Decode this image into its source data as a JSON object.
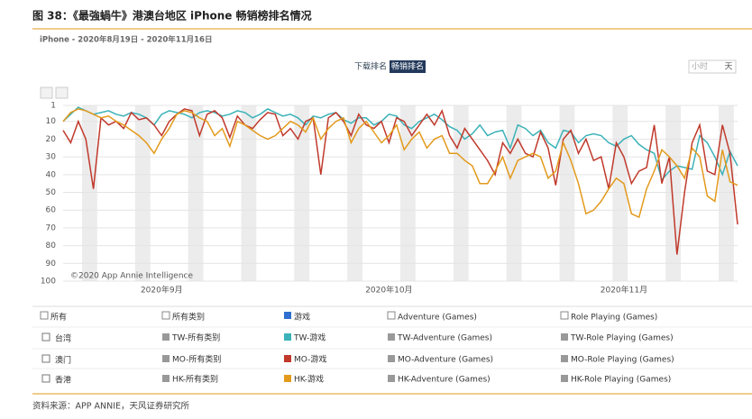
{
  "figure_title": "图 38：《最強蝸牛》港澳台地区 iPhone 畅销榜排名情况",
  "source": "资料来源：APP ANNIE，天风证券研究所",
  "controls": {
    "tabs": [
      "下载排名",
      "畅销排名"
    ],
    "interval": [
      "小时",
      "天"
    ]
  },
  "chart_data": {
    "type": "line",
    "subtitle": "iPhone - 2020年8月19日 - 2020年11月16日",
    "annotation": "©2020 App Annie Intelligence",
    "categories": [
      null,
      null,
      null,
      null,
      null,
      null,
      null,
      null,
      null,
      null,
      null,
      null,
      null,
      "2020年9月",
      null,
      null,
      null,
      null,
      null,
      null,
      null,
      null,
      null,
      null,
      null,
      null,
      null,
      null,
      null,
      null,
      null,
      null,
      null,
      null,
      null,
      null,
      null,
      null,
      null,
      null,
      null,
      null,
      null,
      "2020年10月",
      null,
      null,
      null,
      null,
      null,
      null,
      null,
      null,
      null,
      null,
      null,
      null,
      null,
      null,
      null,
      null,
      null,
      null,
      null,
      null,
      null,
      null,
      null,
      null,
      null,
      null,
      null,
      null,
      null,
      null,
      "2020年11月",
      null,
      null,
      null,
      null,
      null,
      null,
      null,
      null,
      null,
      null,
      null,
      null,
      null,
      null,
      null
    ],
    "series": [
      {
        "name": "TW-游戏",
        "color": "#3bb2b8",
        "values": [
          10,
          6,
          2,
          4,
          6,
          5,
          4,
          6,
          7,
          5,
          6,
          8,
          12,
          6,
          4,
          5,
          6,
          8,
          5,
          4,
          5,
          7,
          6,
          4,
          5,
          8,
          6,
          3,
          5,
          7,
          6,
          8,
          12,
          7,
          8,
          6,
          5,
          9,
          11,
          8,
          8,
          12,
          10,
          6,
          7,
          12,
          14,
          10,
          8,
          6,
          9,
          13,
          15,
          20,
          17,
          12,
          18,
          16,
          15,
          25,
          12,
          14,
          18,
          15,
          22,
          25,
          15,
          16,
          22,
          18,
          17,
          18,
          22,
          24,
          20,
          18,
          23,
          26,
          28,
          43,
          38,
          35,
          36,
          37,
          18,
          22,
          30,
          40,
          27,
          35
        ]
      },
      {
        "name": "MO-游戏",
        "color": "#c0392b",
        "values": [
          15,
          22,
          10,
          20,
          48,
          8,
          12,
          10,
          14,
          5,
          9,
          8,
          12,
          18,
          10,
          6,
          3,
          4,
          18,
          6,
          4,
          8,
          19,
          7,
          12,
          14,
          9,
          5,
          6,
          18,
          14,
          20,
          10,
          8,
          40,
          8,
          5,
          10,
          18,
          6,
          12,
          14,
          10,
          22,
          8,
          10,
          18,
          12,
          6,
          12,
          4,
          18,
          25,
          14,
          20,
          26,
          32,
          40,
          22,
          28,
          20,
          28,
          30,
          16,
          25,
          46,
          20,
          15,
          28,
          20,
          32,
          30,
          48,
          22,
          30,
          45,
          38,
          36,
          12,
          45,
          30,
          85,
          50,
          22,
          12,
          38,
          40,
          12,
          28,
          68
        ]
      },
      {
        "name": "HK-游戏",
        "color": "#e39a1c",
        "values": [
          10,
          5,
          3,
          4,
          6,
          8,
          7,
          10,
          12,
          15,
          18,
          22,
          28,
          20,
          14,
          6,
          4,
          5,
          8,
          10,
          18,
          14,
          24,
          10,
          12,
          15,
          18,
          20,
          18,
          14,
          10,
          12,
          16,
          8,
          20,
          14,
          10,
          8,
          22,
          14,
          10,
          16,
          22,
          18,
          12,
          26,
          20,
          16,
          25,
          20,
          18,
          28,
          28,
          32,
          35,
          45,
          45,
          38,
          30,
          42,
          32,
          30,
          28,
          30,
          42,
          38,
          22,
          32,
          45,
          62,
          60,
          55,
          48,
          42,
          45,
          62,
          64,
          48,
          38,
          26,
          30,
          35,
          42,
          25,
          30,
          52,
          55,
          26,
          44,
          46
        ]
      }
    ],
    "ylim": [
      100,
      1
    ],
    "yticks": [
      1,
      10,
      20,
      30,
      40,
      50,
      60,
      70,
      80,
      90,
      100
    ],
    "grid": true
  },
  "legend_table": {
    "header": [
      "所有",
      "所有类别",
      "Adventure (Games)",
      "Role Playing (Games)"
    ],
    "games_header": "游戏",
    "rows": [
      {
        "region": "台湾",
        "cells": [
          "TW-所有类别",
          "TW-Adventure (Games)",
          "TW-Role Playing (Games)"
        ]
      },
      {
        "region": "澳门",
        "cells": [
          "MO-所有类别",
          "MO-Adventure (Games)",
          "MO-Role Playing (Games)"
        ]
      },
      {
        "region": "香港",
        "cells": [
          "HK-所有类别",
          "HK-Adventure (Games)",
          "HK-Role Playing (Games)"
        ]
      }
    ]
  }
}
